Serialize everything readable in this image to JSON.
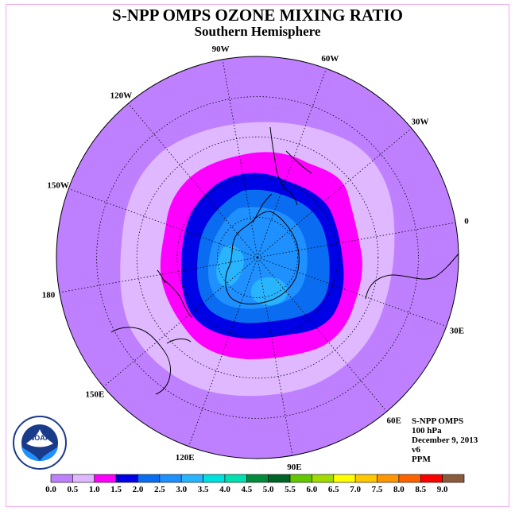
{
  "title": "S-NPP OMPS OZONE MIXING RATIO",
  "subtitle": "Southern Hemisphere",
  "info": {
    "instrument": "S-NPP OMPS",
    "level": "100 hPa",
    "date": "December 9, 2013",
    "version": "v6",
    "units": "PPM"
  },
  "logo": {
    "text": "NOAA",
    "ring_text": "NATIONAL OCEANIC AND ATMOSPHERIC ADMINISTRATION · U.S. DEPARTMENT OF COMMERCE"
  },
  "longitude_labels": [
    {
      "label": "0",
      "lon": 0
    },
    {
      "label": "30E",
      "lon": 30
    },
    {
      "label": "60E",
      "lon": 60
    },
    {
      "label": "90E",
      "lon": 90
    },
    {
      "label": "120E",
      "lon": 120
    },
    {
      "label": "150E",
      "lon": 150
    },
    {
      "label": "180",
      "lon": 180
    },
    {
      "label": "150W",
      "lon": -150
    },
    {
      "label": "120W",
      "lon": -120
    },
    {
      "label": "90W",
      "lon": -90
    },
    {
      "label": "60W",
      "lon": -60
    },
    {
      "label": "30W",
      "lon": -30
    }
  ],
  "colors": {
    "map_background": "#bf80ff",
    "colorbar": [
      "#bf80ff",
      "#e0b8ff",
      "#ff00ff",
      "#0000e6",
      "#0a6cf0",
      "#1e90ff",
      "#28b4ff",
      "#00e0e0",
      "#00e0b0",
      "#008c3c",
      "#006428",
      "#64c800",
      "#a0dc00",
      "#ffff00",
      "#ffc800",
      "#ff9600",
      "#ff6400",
      "#ff0000",
      "#8c5a3c"
    ]
  },
  "chart_data": {
    "type": "heatmap",
    "projection": "south-polar-stereographic",
    "levels": [
      "0.0",
      "0.5",
      "1.0",
      "1.5",
      "2.0",
      "2.5",
      "3.0",
      "3.5",
      "4.0",
      "4.5",
      "5.0",
      "5.5",
      "6.0",
      "6.5",
      "7.0",
      "7.5",
      "8.0",
      "8.5",
      "9.0"
    ],
    "color_bins": [
      {
        "range": [
          0.0,
          0.5
        ],
        "color": "#bf80ff"
      },
      {
        "range": [
          0.5,
          1.0
        ],
        "color": "#e0b8ff"
      },
      {
        "range": [
          1.0,
          1.5
        ],
        "color": "#ff00ff"
      },
      {
        "range": [
          1.5,
          2.0
        ],
        "color": "#0000e6"
      },
      {
        "range": [
          2.0,
          2.5
        ],
        "color": "#0a6cf0"
      },
      {
        "range": [
          2.5,
          3.0
        ],
        "color": "#1e90ff"
      },
      {
        "range": [
          3.0,
          3.5
        ],
        "color": "#28b4ff"
      },
      {
        "range": [
          3.5,
          4.0
        ],
        "color": "#00e0e0"
      }
    ],
    "field_rings_ppm": [
      0.5,
      1.0,
      1.5,
      2.0,
      2.5,
      3.0
    ],
    "grid": true
  }
}
